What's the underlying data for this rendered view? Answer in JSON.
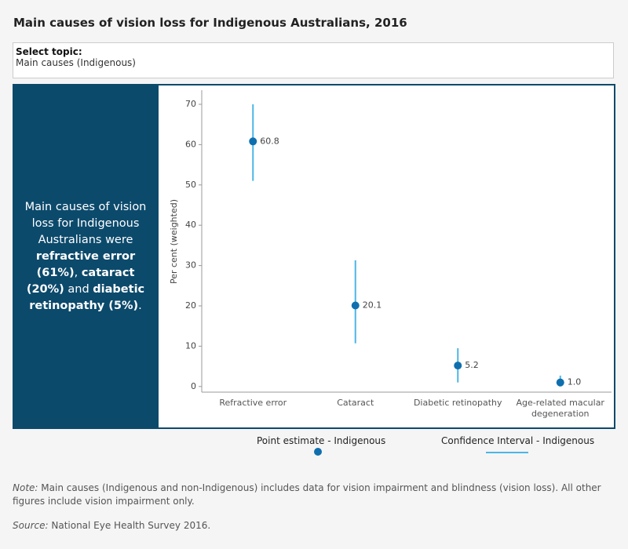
{
  "header": {
    "title": "Main causes of vision loss for Indigenous Australians, 2016"
  },
  "filter": {
    "label": "Select topic:",
    "value": "Main causes (Indigenous)"
  },
  "panel": {
    "parts": [
      "Main causes of vision loss for Indigenous Australians were ",
      "refractive error (61%)",
      ", ",
      "cataract (20%)",
      " and ",
      "diabetic retinopathy (5%)",
      "."
    ]
  },
  "chart_data": {
    "type": "errorbar",
    "y_label": "Per cent (weighted)",
    "categories": [
      "Refractive error",
      "Cataract",
      "Diabetic retinopathy",
      "Age-related macular degeneration"
    ],
    "series": [
      {
        "name": "Point estimate - Indigenous",
        "color": "#0f6fae",
        "values": [
          60.8,
          20.1,
          5.2,
          1.0
        ],
        "value_labels": [
          "60.8",
          "20.1",
          "5.2",
          "1.0"
        ]
      },
      {
        "name": "Confidence Interval - Indigenous",
        "color": "#4cb6e6",
        "low": [
          51.0,
          10.7,
          1.0,
          0.0
        ],
        "high": [
          70.0,
          31.3,
          9.5,
          2.7
        ]
      }
    ],
    "ylim": [
      -1.4,
      73.5
    ],
    "yticks": [
      0,
      10,
      20,
      30,
      40,
      50,
      60,
      70
    ],
    "grid": false
  },
  "notes": {
    "note_label": "Note:",
    "note": "Main causes (Indigenous and non-Indigenous) includes data for vision impairment and blindness (vision loss). All other figures include vision impairment only.",
    "source_label": "Source:",
    "source": "National Eye Health Survey 2016."
  }
}
